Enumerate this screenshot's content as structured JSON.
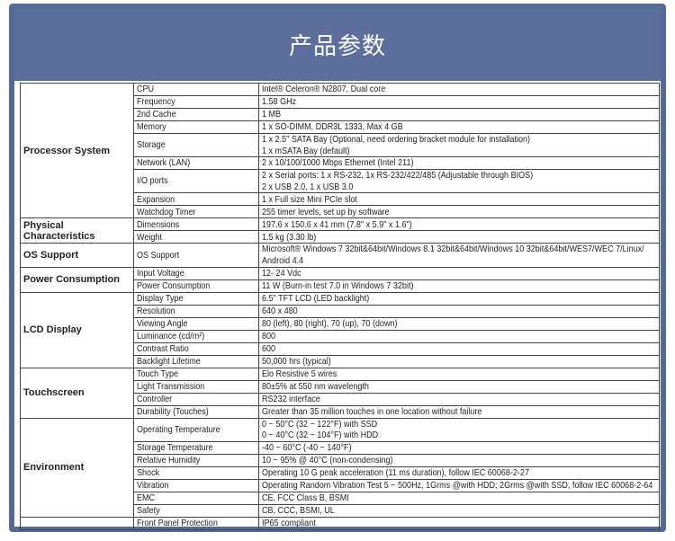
{
  "header": {
    "title": "产品参数"
  },
  "groups": [
    {
      "label": "Processor System",
      "rows": [
        {
          "param": "CPU",
          "lines": [
            "Intel® Celeron® N2807, Dual core"
          ]
        },
        {
          "param": "Frequency",
          "lines": [
            "1.58 GHz"
          ]
        },
        {
          "param": "2nd Cache",
          "lines": [
            "1 MB"
          ]
        },
        {
          "param": "Memory",
          "lines": [
            "1 x SO-DIMM, DDR3L 1333, Max 4 GB"
          ]
        },
        {
          "param": "Storage",
          "lines": [
            "1 x 2.5\" SATA Bay (Optional, need ordering bracket module for installation)",
            "1 x mSATA Bay (default)"
          ]
        },
        {
          "param": "Network (LAN)",
          "lines": [
            "2 x 10/100/1000 Mbps Ethernet (Intel 211)"
          ]
        },
        {
          "param": "I/O ports",
          "lines": [
            "2 x Serial ports: 1 x RS-232, 1x RS-232/422/485 (Adjustable through BIOS)",
            "2 x USB 2.0, 1 x USB 3.0"
          ]
        },
        {
          "param": "Expansion",
          "lines": [
            "1 x Full size Mini PCIe slot"
          ]
        },
        {
          "param": "Watchdog Timer",
          "lines": [
            "255 timer levels, set up by software"
          ]
        }
      ]
    },
    {
      "label": "Physical Characteristics",
      "rows": [
        {
          "param": "Dimensions",
          "lines": [
            "197.6 x 150.6 x 41 mm (7.8\" x 5.9\" x 1.6\")"
          ]
        },
        {
          "param": "Weight",
          "lines": [
            "1.5 kg (3.30 lb)"
          ]
        }
      ]
    },
    {
      "label": "OS Support",
      "rows": [
        {
          "param": "OS Support",
          "lines": [
            "Microsoft® Windows 7 32bit&64bit/Windows 8.1 32bit&64bit/Windows 10 32bit&64bit/WES7/WEC 7/Linux/",
            "Android 4.4"
          ]
        }
      ]
    },
    {
      "label": "Power Consumption",
      "rows": [
        {
          "param": "Input Voltage",
          "lines": [
            "12- 24 Vdc"
          ]
        },
        {
          "param": "Power Consumption",
          "lines": [
            "11 W (Burn-in test 7.0 in Windows 7 32bit)"
          ]
        }
      ]
    },
    {
      "label": "LCD Display",
      "rows": [
        {
          "param": "Display Type",
          "lines": [
            "6.5\" TFT LCD (LED backlight)"
          ]
        },
        {
          "param": "Resolution",
          "lines": [
            "640 x 480"
          ]
        },
        {
          "param": "Viewing Angle",
          "lines": [
            "80 (left), 80 (right), 70 (up), 70 (down)"
          ]
        },
        {
          "param": "Luminance (cd/m²)",
          "lines": [
            "800"
          ]
        },
        {
          "param": "Contrast Ratio",
          "lines": [
            "600"
          ]
        },
        {
          "param": "Backlight Lifetime",
          "lines": [
            "50,000 hrs (typical)"
          ]
        }
      ]
    },
    {
      "label": "Touchscreen",
      "rows": [
        {
          "param": "Touch Type",
          "lines": [
            "Elo Resistive 5 wires"
          ]
        },
        {
          "param": "Light Transmission",
          "lines": [
            "80±5% at 550 nm wavelength"
          ]
        },
        {
          "param": "Controller",
          "lines": [
            "RS232 interface"
          ]
        },
        {
          "param": "Durability (Touches)",
          "lines": [
            "Greater than 35 million touches in one location without failure"
          ]
        }
      ]
    },
    {
      "label": "Environment",
      "rows": [
        {
          "param": "Operating Temperature",
          "lines": [
            "0 ~ 50°C (32 ~ 122°F) with SSD",
            "0 ~ 40°C (32 ~ 104°F) with HDD"
          ]
        },
        {
          "param": "Storage Temperature",
          "lines": [
            "-40 ~ 60°C (-40 ~ 140°F)"
          ]
        },
        {
          "param": "Relative Humidity",
          "lines": [
            "10 ~ 95% @ 40°C (non-condensing)"
          ]
        },
        {
          "param": "Shock",
          "lines": [
            "Operating 10 G peak acceleration (11 ms duration), follow IEC 60068-2-27"
          ]
        },
        {
          "param": "Vibration",
          "lines": [
            "Operating Random Vibration Test 5 ~ 500Hz, 1Grms @with HDD; 2Grms @with SSD, follow IEC 60068-2-64"
          ]
        },
        {
          "param": "EMC",
          "lines": [
            "CE, FCC Class B, BSMI"
          ]
        },
        {
          "param": "Safety",
          "lines": [
            "CB, CCC, BSMI, UL"
          ]
        }
      ]
    },
    {
      "label": null,
      "rows": [
        {
          "param": "Front Panel Protection",
          "lines": [
            "IP65 compliant"
          ]
        }
      ]
    }
  ]
}
